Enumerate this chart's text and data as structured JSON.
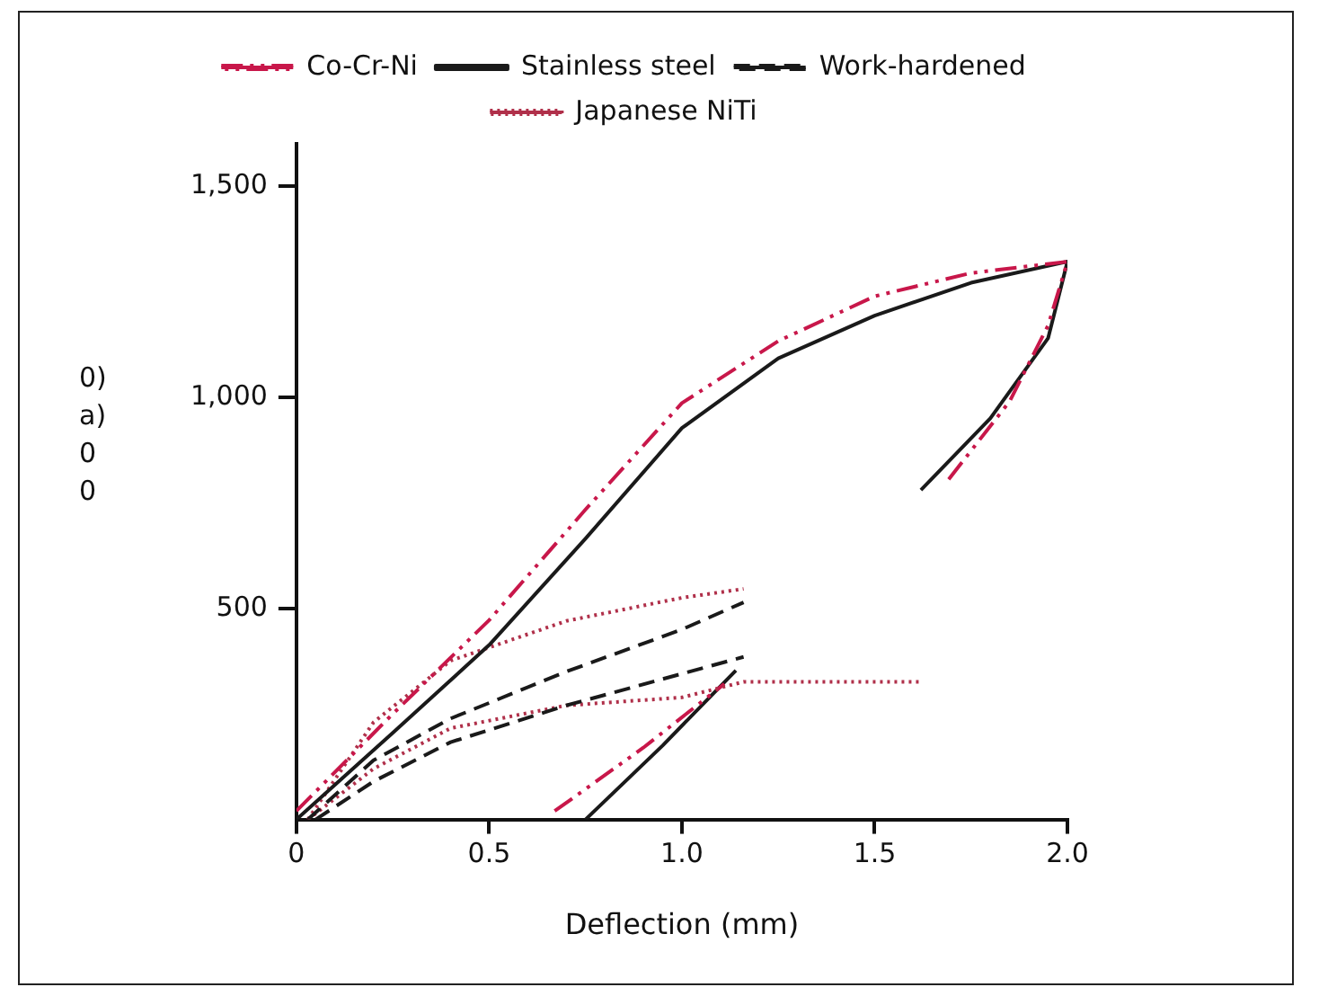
{
  "chart_data": {
    "type": "line",
    "xlabel": "Deflection (mm)",
    "annotations": [
      "0)",
      "a)",
      "0",
      "0"
    ],
    "xlim": [
      0,
      2.0
    ],
    "ylim": [
      0,
      1600
    ],
    "xticks": [
      0,
      {
        "value": 0.5,
        "label": "0.5"
      },
      {
        "value": 1.0,
        "label": "1.0"
      },
      {
        "value": 1.5,
        "label": "1.5"
      },
      {
        "value": 2.0,
        "label": "2.0"
      }
    ],
    "yticks": [
      {
        "value": 500,
        "label": "500"
      },
      {
        "value": 1000,
        "label": "1,000"
      },
      {
        "value": 1500,
        "label": "1,500"
      }
    ],
    "grid": false,
    "legend": "top",
    "marker": "none",
    "series": [
      {
        "name": "Co-Cr-Ni",
        "color": "#c8174a",
        "line_style": "dashdot",
        "x": [
          0,
          0.25,
          0.5,
          0.75,
          1.0,
          1.25,
          1.5,
          1.75,
          2.0,
          1.95,
          1.85,
          1.69
        ],
        "values": [
          20,
          250,
          472,
          734,
          986,
          1133,
          1239,
          1294,
          1321,
          1170,
          990,
          803
        ]
      },
      {
        "name": "Stainless steel",
        "color": "#1a1a1a",
        "line_style": "solid",
        "x": [
          0,
          0.25,
          0.5,
          0.75,
          1.0,
          1.25,
          1.5,
          1.75,
          2.0,
          1.95,
          1.8,
          1.62
        ],
        "values": [
          0,
          205,
          413,
          665,
          927,
          1092,
          1193,
          1271,
          1321,
          1140,
          950,
          780
        ]
      },
      {
        "name": "Work-hardened",
        "color": "#1a1a1a",
        "line_style": "dashed",
        "x": [
          0.03,
          0.2,
          0.4,
          0.7,
          1.0,
          1.16
        ],
        "values": [
          0,
          140,
          239,
          350,
          450,
          514
        ]
      },
      {
        "name": "Japanese NiTi",
        "color": "#b0304a",
        "line_style": "dotted",
        "x": [
          0.03,
          0.2,
          0.4,
          0.7,
          1.0,
          1.16
        ],
        "values": [
          0,
          230,
          376,
          470,
          525,
          546
        ]
      },
      {
        "color": "#1a1a1a",
        "line_style": "dashed",
        "x": [
          0.05,
          0.2,
          0.4,
          0.7,
          1.0,
          1.16
        ],
        "values": [
          0,
          90,
          183,
          270,
          345,
          385
        ]
      },
      {
        "color": "#b0304a",
        "line_style": "dotted",
        "x": [
          0.03,
          0.2,
          0.4,
          0.7,
          1.0,
          1.16,
          1.62
        ],
        "values": [
          0,
          120,
          216,
          270,
          289,
          326,
          326
        ]
      },
      {
        "color": "#c8174a",
        "line_style": "dashdot",
        "x": [
          0.67,
          0.9,
          1.11
        ],
        "values": [
          20,
          170,
          321
        ]
      },
      {
        "color": "#1a1a1a",
        "line_style": "solid",
        "x": [
          0.75,
          0.95,
          1.14
        ],
        "values": [
          0,
          175,
          353
        ]
      }
    ]
  }
}
